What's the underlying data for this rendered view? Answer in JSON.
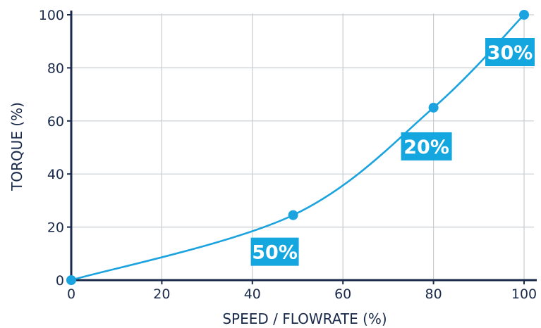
{
  "chart_data": {
    "type": "line",
    "title": "",
    "xlabel": "SPEED / FLOWRATE (%)",
    "ylabel": "TORQUE (%)",
    "xlim": [
      0,
      100
    ],
    "ylim": [
      0,
      100
    ],
    "x_ticks": [
      "0",
      "20",
      "40",
      "60",
      "80",
      "100"
    ],
    "y_ticks": [
      "0",
      "20",
      "40",
      "60",
      "80",
      "100"
    ],
    "grid": true,
    "series": [
      {
        "points": [
          {
            "x": 0,
            "y": 0
          },
          {
            "x": 49,
            "y": 24.5
          },
          {
            "x": 80,
            "y": 65
          },
          {
            "x": 100,
            "y": 100
          }
        ]
      }
    ],
    "annotations": [
      {
        "text": "50%",
        "x": 49,
        "y": 24.5
      },
      {
        "text": "20%",
        "x": 80,
        "y": 65
      },
      {
        "text": "30%",
        "x": 100,
        "y": 100
      }
    ],
    "colors": {
      "line": "#1aa3df",
      "badge": "#13a6df",
      "grid": "#c8cdd2",
      "axis": "#1a2a4a",
      "text": "#1a2a4a"
    }
  }
}
